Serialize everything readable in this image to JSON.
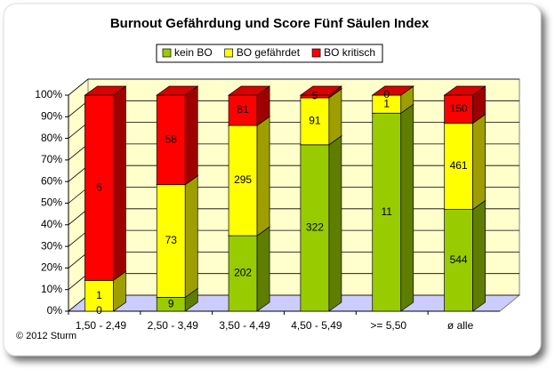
{
  "chart_data": {
    "type": "bar",
    "stacked": "percent",
    "title": "Burnout Gefährdung und Score Fünf Säulen Index",
    "footer": "© 2012 Sturm",
    "categories": [
      "1,50 - 2,49",
      "2,50 - 3,49",
      "3,50 - 4,49",
      "4,50 - 5,49",
      ">= 5,50",
      "ø alle"
    ],
    "series": [
      {
        "name": "kein BO",
        "color": "#99cc00",
        "values": [
          0,
          9,
          202,
          322,
          11,
          544
        ]
      },
      {
        "name": "BO gefährdet",
        "color": "#ffff00",
        "values": [
          1,
          73,
          295,
          91,
          1,
          461
        ]
      },
      {
        "name": "BO kritisch",
        "color": "#ff0000",
        "values": [
          6,
          58,
          81,
          5,
          0,
          150
        ]
      }
    ],
    "ylim": [
      0,
      100
    ],
    "yticks": [
      {
        "value": 0,
        "label": "0%"
      },
      {
        "value": 10,
        "label": "10%"
      },
      {
        "value": 20,
        "label": "20%"
      },
      {
        "value": 30,
        "label": "30%"
      },
      {
        "value": 40,
        "label": "40%"
      },
      {
        "value": 50,
        "label": "50%"
      },
      {
        "value": 60,
        "label": "60%"
      },
      {
        "value": 70,
        "label": "70%"
      },
      {
        "value": 80,
        "label": "80%"
      },
      {
        "value": 90,
        "label": "90%"
      },
      {
        "value": 100,
        "label": "100%"
      }
    ],
    "grid": true,
    "legend": "top"
  }
}
